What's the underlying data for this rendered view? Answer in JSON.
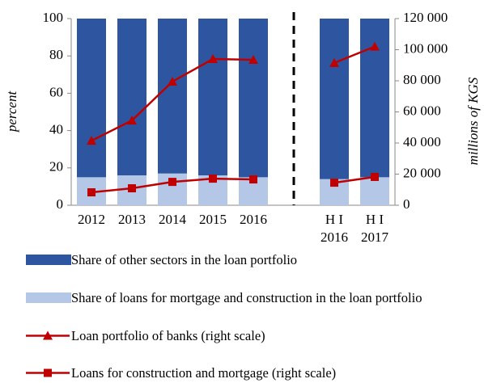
{
  "chart_data": {
    "type": "bar",
    "categories": [
      "2012",
      "2013",
      "2014",
      "2015",
      "2016",
      null,
      "H I 2016",
      "H I 2017"
    ],
    "ylabel": "percent",
    "y2label": "millions of KGS",
    "ylim": [
      0,
      100
    ],
    "yticks": [
      0,
      20,
      40,
      60,
      80,
      100
    ],
    "y2lim": [
      0,
      120000
    ],
    "y2ticks": [
      {
        "value": 0,
        "label": "0"
      },
      {
        "value": 20000,
        "label": "20 000"
      },
      {
        "value": 40000,
        "label": "40 000"
      },
      {
        "value": 60000,
        "label": "60 000"
      },
      {
        "value": 80000,
        "label": "80 000"
      },
      {
        "value": 100000,
        "label": "100 000"
      },
      {
        "value": 120000,
        "label": "120 000"
      }
    ],
    "series": [
      {
        "name": "Share of other sectors in the loan portfolio",
        "type": "bar",
        "color": "#2e56a0",
        "values": [
          85,
          84,
          83,
          84,
          85,
          null,
          86,
          85
        ]
      },
      {
        "name": "Share of loans for mortgage and construction in the loan portfolio",
        "type": "bar",
        "color": "#b4c7e7",
        "values": [
          15,
          16,
          17,
          16,
          15,
          null,
          14,
          15
        ]
      },
      {
        "name": "Loan portfolio of banks (right scale)",
        "type": "line",
        "axis": "y2",
        "marker": "triangle",
        "color": "#c00000",
        "values": [
          41500,
          54500,
          79500,
          94000,
          93500,
          null,
          91500,
          102000
        ]
      },
      {
        "name": "Loans for construction and mortgage (right scale)",
        "type": "line",
        "axis": "y2",
        "marker": "square",
        "color": "#c00000",
        "values": [
          8300,
          10900,
          15000,
          17100,
          16600,
          null,
          14500,
          18200
        ]
      }
    ]
  }
}
